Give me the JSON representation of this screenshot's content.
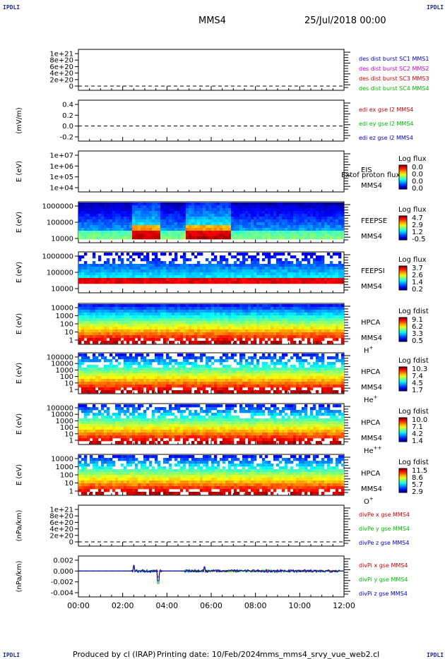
{
  "corner_tag": "IPDLI",
  "header": {
    "spacecraft": "MMS4",
    "date": "25/Jul/2018 00:00"
  },
  "footer": {
    "produced_by": "Produced by cl (IRAP)",
    "printing_date": "Printing date: 10/Feb/2024",
    "filename": "mms_mms4_srvy_vue_web2.cl"
  },
  "chart_data": {
    "type": "stacked-timeseries",
    "x_ticks": [
      "00:00",
      "02:00",
      "04:00",
      "06:00",
      "08:00",
      "10:00",
      "12:00"
    ],
    "panels": [
      {
        "id": "des",
        "kind": "line",
        "ylabel": "",
        "yticks": [
          "1e+21",
          "8e+20",
          "6e+20",
          "4e+20",
          "2e+20",
          "0"
        ],
        "legend": [
          {
            "text": "des dist burst SC1 MMS1",
            "color": "#0000cc"
          },
          {
            "text": "des dist burst SC2 MMS2",
            "color": "#cc00cc"
          },
          {
            "text": "des dist burst SC3 MMS3",
            "color": "#cc0000"
          },
          {
            "text": "des dist burst SC4 MMS4",
            "color": "#00bb00"
          }
        ]
      },
      {
        "id": "edi",
        "kind": "line",
        "ylabel": "(mV/m)",
        "yticks": [
          "0.4",
          "0.2",
          "0.0",
          "-0.2"
        ],
        "legend": [
          {
            "text": "edi ex gse l2 MMS4",
            "color": "#cc0000"
          },
          {
            "text": "edi ey gse l2 MMS4",
            "color": "#00bb00"
          },
          {
            "text": "edi ez gse l2 MMS4",
            "color": "#0000cc"
          }
        ]
      },
      {
        "id": "eis",
        "kind": "spec-empty",
        "ylabel": "E (eV)",
        "yticks": [
          "1e+07",
          "1e+06",
          "1e+05",
          "1e+04"
        ],
        "instrument": "EIS",
        "overflow": "Extof proton flux",
        "sc": "MMS4",
        "species": "",
        "cbar_title": "Log flux",
        "cbar_ticks": [
          "0.0",
          "0.0",
          "0.0",
          "0.0"
        ]
      },
      {
        "id": "feepse",
        "kind": "spec",
        "ylabel": "E (eV)",
        "yticks": [
          "1000000",
          "100000",
          "10000"
        ],
        "instrument": "FEEPSE",
        "sc": "MMS4",
        "species": "",
        "cbar_title": "Log flux",
        "cbar_ticks": [
          "4.7",
          "2.9",
          "1.2",
          "-0.5"
        ]
      },
      {
        "id": "feepsi",
        "kind": "spec",
        "ylabel": "E (eV)",
        "yticks": [
          "1000000",
          "100000",
          "10000"
        ],
        "instrument": "FEEPSI",
        "sc": "MMS4",
        "species": "",
        "cbar_title": "Log flux",
        "cbar_ticks": [
          "3.7",
          "2.6",
          "1.4",
          "0.2"
        ]
      },
      {
        "id": "hpca_h",
        "kind": "spec",
        "ylabel": "E (eV)",
        "yticks": [
          "10000",
          "1000",
          "100",
          "10",
          "1"
        ],
        "instrument": "HPCA",
        "sc": "MMS4",
        "species": "H",
        "charge": "+",
        "cbar_title": "Log fdist",
        "cbar_ticks": [
          "9.1",
          "6.2",
          "3.3",
          "0.5"
        ]
      },
      {
        "id": "hpca_he",
        "kind": "spec",
        "ylabel": "E (eV)",
        "yticks": [
          "100000",
          "10000",
          "1000",
          "100",
          "10",
          "1"
        ],
        "instrument": "HPCA",
        "sc": "MMS4",
        "species": "He",
        "charge": "+",
        "cbar_title": "Log fdist",
        "cbar_ticks": [
          "10.3",
          "7.4",
          "4.5",
          "1.7"
        ]
      },
      {
        "id": "hpca_hepp",
        "kind": "spec",
        "ylabel": "E (eV)",
        "yticks": [
          "100000",
          "10000",
          "1000",
          "100",
          "10",
          "1"
        ],
        "instrument": "HPCA",
        "sc": "MMS4",
        "species": "He",
        "charge": "++",
        "cbar_title": "Log fdist",
        "cbar_ticks": [
          "10.0",
          "7.1",
          "4.2",
          "1.4"
        ]
      },
      {
        "id": "hpca_o",
        "kind": "spec",
        "ylabel": "E (eV)",
        "yticks": [
          "10000",
          "1000",
          "100",
          "10",
          "1"
        ],
        "instrument": "HPCA",
        "sc": "MMS4",
        "species": "O",
        "charge": "+",
        "cbar_title": "Log fdist",
        "cbar_ticks": [
          "11.5",
          "8.6",
          "5.7",
          "2.9"
        ]
      },
      {
        "id": "divpe",
        "kind": "line",
        "ylabel": "(nPa/km)",
        "yticks": [
          "1e+21",
          "8e+20",
          "6e+20",
          "4e+20",
          "2e+20",
          "0"
        ],
        "legend": [
          {
            "text": "divPe x gse MMS4",
            "color": "#cc0000"
          },
          {
            "text": "divPe y gse MMS4",
            "color": "#00bb00"
          },
          {
            "text": "divPe z gse MMS4",
            "color": "#0000cc"
          }
        ]
      },
      {
        "id": "divpi",
        "kind": "line",
        "ylabel": "(nPa/km)",
        "yticks": [
          "0.002",
          "0.000",
          "-0.002",
          "-0.004"
        ],
        "legend": [
          {
            "text": "divPi x gse MMS4",
            "color": "#cc0000"
          },
          {
            "text": "divPi y gse MMS4",
            "color": "#00bb00"
          },
          {
            "text": "divPi z gse MMS4",
            "color": "#0000cc"
          }
        ]
      }
    ]
  }
}
